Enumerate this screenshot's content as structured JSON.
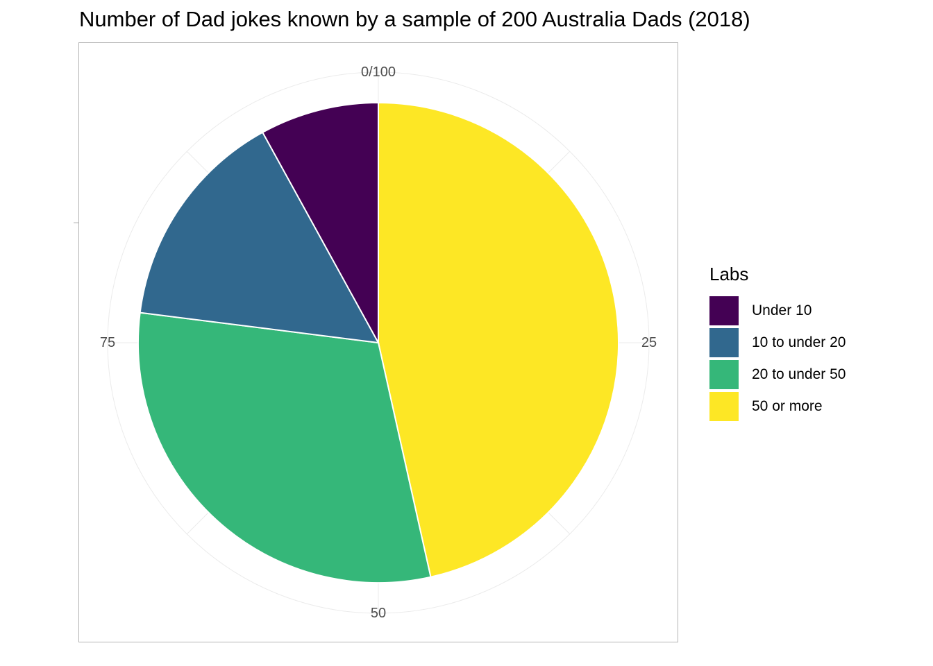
{
  "chart_data": {
    "type": "pie",
    "title": "Number of Dad jokes known by a sample of 200 Australia Dads (2018)",
    "legend_title": "Labs",
    "legend_position": "right",
    "categories": [
      "Under 10",
      "10 to under 20",
      "20 to under 50",
      "50 or more"
    ],
    "values": [
      8,
      15,
      30.5,
      46.5
    ],
    "colors": [
      "#440154",
      "#31688E",
      "#35B779",
      "#FDE725"
    ],
    "axis_ticks": [
      {
        "value": 0,
        "label": "0/100"
      },
      {
        "value": 25,
        "label": "25"
      },
      {
        "value": 50,
        "label": "50"
      },
      {
        "value": 75,
        "label": "75"
      }
    ],
    "ylim": [
      0,
      100
    ],
    "grid": true,
    "draw_order_clockwise": [
      "50 or more",
      "20 to under 50",
      "10 to under 20",
      "Under 10"
    ]
  }
}
